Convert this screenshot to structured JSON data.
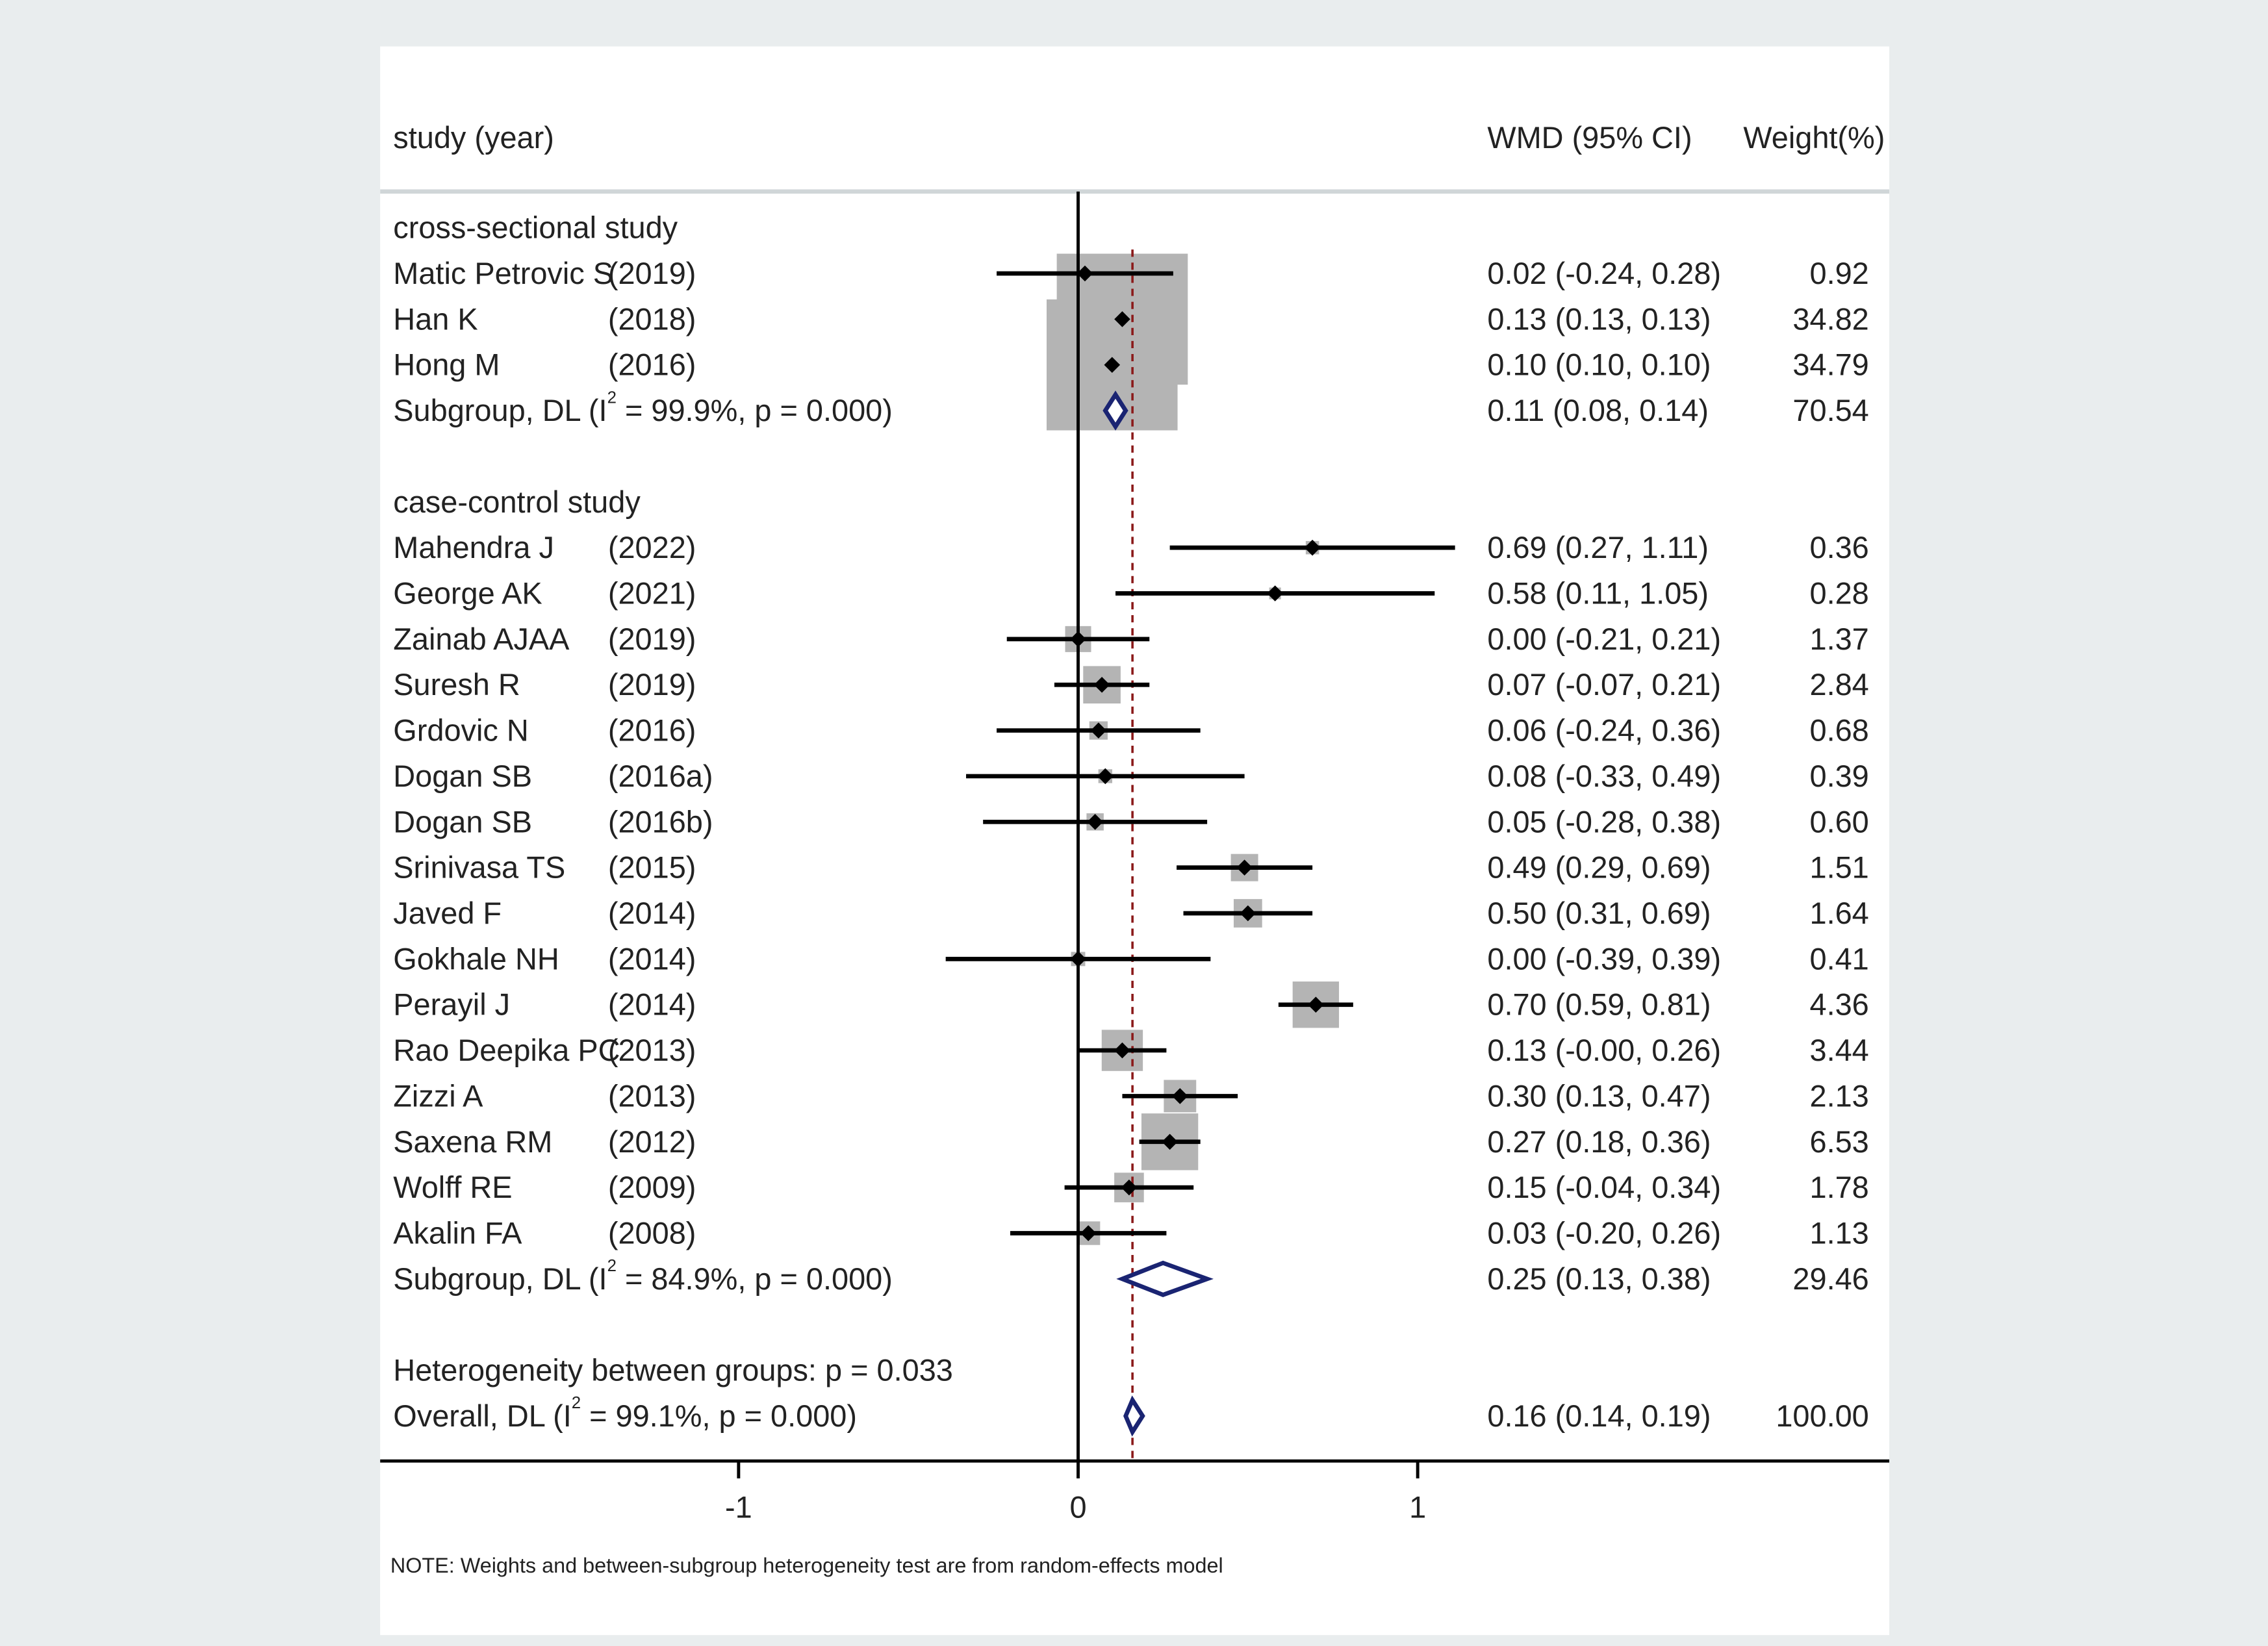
{
  "chart_data": {
    "type": "forest",
    "header": {
      "study_label": "study (year)",
      "effect_label": "WMD (95% CI)",
      "weight_label": "Weight(%)"
    },
    "x_ticks": [
      "-1",
      "0",
      "1"
    ],
    "xlim": [
      -2.0,
      2.45
    ],
    "null_line": 0,
    "overall_line": 0.16,
    "groups": [
      {
        "title": "cross-sectional study",
        "studies": [
          {
            "name": "Matic Petrovic S",
            "year": "(2019)",
            "est": 0.02,
            "lo": -0.24,
            "hi": 0.28,
            "ci_text": "0.02 (-0.24, 0.28)",
            "weight_text": "0.92",
            "weight": 0.92
          },
          {
            "name": "Han K",
            "year": "(2018)",
            "est": 0.13,
            "lo": 0.13,
            "hi": 0.13,
            "ci_text": "0.13 (0.13, 0.13)",
            "weight_text": "34.82",
            "weight": 34.82
          },
          {
            "name": "Hong M",
            "year": "(2016)",
            "est": 0.1,
            "lo": 0.1,
            "hi": 0.1,
            "ci_text": "0.10 (0.10, 0.10)",
            "weight_text": "34.79",
            "weight": 34.79
          }
        ],
        "subgroup": {
          "label_pre": "Subgroup, DL (I",
          "sup": "2",
          "label_post": " = 99.9%, p = 0.000)",
          "est": 0.11,
          "lo": 0.08,
          "hi": 0.14,
          "ci_text": "0.11 (0.08, 0.14)",
          "weight_text": "70.54"
        }
      },
      {
        "title": "case-control study",
        "studies": [
          {
            "name": "Mahendra J",
            "year": "(2022)",
            "est": 0.69,
            "lo": 0.27,
            "hi": 1.11,
            "ci_text": "0.69 (0.27, 1.11)",
            "weight_text": "0.36",
            "weight": 0.36
          },
          {
            "name": "George AK",
            "year": "(2021)",
            "est": 0.58,
            "lo": 0.11,
            "hi": 1.05,
            "ci_text": "0.58 (0.11, 1.05)",
            "weight_text": "0.28",
            "weight": 0.28
          },
          {
            "name": "Zainab AJAA",
            "year": "(2019)",
            "est": 0.0,
            "lo": -0.21,
            "hi": 0.21,
            "ci_text": "0.00 (-0.21, 0.21)",
            "weight_text": "1.37",
            "weight": 1.37
          },
          {
            "name": "Suresh R",
            "year": "(2019)",
            "est": 0.07,
            "lo": -0.07,
            "hi": 0.21,
            "ci_text": "0.07 (-0.07, 0.21)",
            "weight_text": "2.84",
            "weight": 2.84
          },
          {
            "name": "Grdovic N",
            "year": "(2016)",
            "est": 0.06,
            "lo": -0.24,
            "hi": 0.36,
            "ci_text": "0.06 (-0.24, 0.36)",
            "weight_text": "0.68",
            "weight": 0.68
          },
          {
            "name": "Dogan SB",
            "year": "(2016a)",
            "est": 0.08,
            "lo": -0.33,
            "hi": 0.49,
            "ci_text": "0.08 (-0.33, 0.49)",
            "weight_text": "0.39",
            "weight": 0.39
          },
          {
            "name": "Dogan SB",
            "year": "(2016b)",
            "est": 0.05,
            "lo": -0.28,
            "hi": 0.38,
            "ci_text": "0.05 (-0.28, 0.38)",
            "weight_text": "0.60",
            "weight": 0.6
          },
          {
            "name": "Srinivasa TS",
            "year": "(2015)",
            "est": 0.49,
            "lo": 0.29,
            "hi": 0.69,
            "ci_text": "0.49 (0.29, 0.69)",
            "weight_text": "1.51",
            "weight": 1.51
          },
          {
            "name": "Javed F",
            "year": "(2014)",
            "est": 0.5,
            "lo": 0.31,
            "hi": 0.69,
            "ci_text": "0.50 (0.31, 0.69)",
            "weight_text": "1.64",
            "weight": 1.64
          },
          {
            "name": "Gokhale NH",
            "year": "(2014)",
            "est": 0.0,
            "lo": -0.39,
            "hi": 0.39,
            "ci_text": "0.00 (-0.39, 0.39)",
            "weight_text": "0.41",
            "weight": 0.41
          },
          {
            "name": "Perayil J",
            "year": "(2014)",
            "est": 0.7,
            "lo": 0.59,
            "hi": 0.81,
            "ci_text": "0.70 (0.59, 0.81)",
            "weight_text": "4.36",
            "weight": 4.36
          },
          {
            "name": "Rao Deepika PC",
            "year": "(2013)",
            "est": 0.13,
            "lo": -0.0,
            "hi": 0.26,
            "ci_text": "0.13 (-0.00, 0.26)",
            "weight_text": "3.44",
            "weight": 3.44
          },
          {
            "name": "Zizzi A",
            "year": "(2013)",
            "est": 0.3,
            "lo": 0.13,
            "hi": 0.47,
            "ci_text": "0.30 (0.13, 0.47)",
            "weight_text": "2.13",
            "weight": 2.13
          },
          {
            "name": "Saxena RM",
            "year": "(2012)",
            "est": 0.27,
            "lo": 0.18,
            "hi": 0.36,
            "ci_text": "0.27 (0.18, 0.36)",
            "weight_text": "6.53",
            "weight": 6.53
          },
          {
            "name": "Wolff RE",
            "year": "(2009)",
            "est": 0.15,
            "lo": -0.04,
            "hi": 0.34,
            "ci_text": "0.15 (-0.04, 0.34)",
            "weight_text": "1.78",
            "weight": 1.78
          },
          {
            "name": "Akalin FA",
            "year": "(2008)",
            "est": 0.03,
            "lo": -0.2,
            "hi": 0.26,
            "ci_text": "0.03 (-0.20, 0.26)",
            "weight_text": "1.13",
            "weight": 1.13
          }
        ],
        "subgroup": {
          "label_pre": "Subgroup, DL (I",
          "sup": "2",
          "label_post": " = 84.9%, p = 0.000)",
          "est": 0.25,
          "lo": 0.13,
          "hi": 0.38,
          "ci_text": "0.25 (0.13, 0.38)",
          "weight_text": "29.46"
        }
      }
    ],
    "heterogeneity_text": "Heterogeneity between groups: p = 0.033",
    "overall": {
      "label_pre": "Overall, DL (I",
      "sup": "2",
      "label_post": " = 99.1%, p = 0.000)",
      "est": 0.16,
      "lo": 0.14,
      "hi": 0.19,
      "ci_text": "0.16 (0.14, 0.19)",
      "weight_text": "100.00"
    },
    "note": "NOTE: Weights and between-subgroup heterogeneity test are from random-effects model",
    "colors": {
      "frame_bg": "#e9edee",
      "plot_bg": "#ffffff",
      "text": "#222222",
      "ci_line": "#000000",
      "weight_box": "#b4b4b4",
      "diamond": "#1a2472",
      "overall_line": "#8b1a1a",
      "divider": "#d0d6d8"
    }
  }
}
